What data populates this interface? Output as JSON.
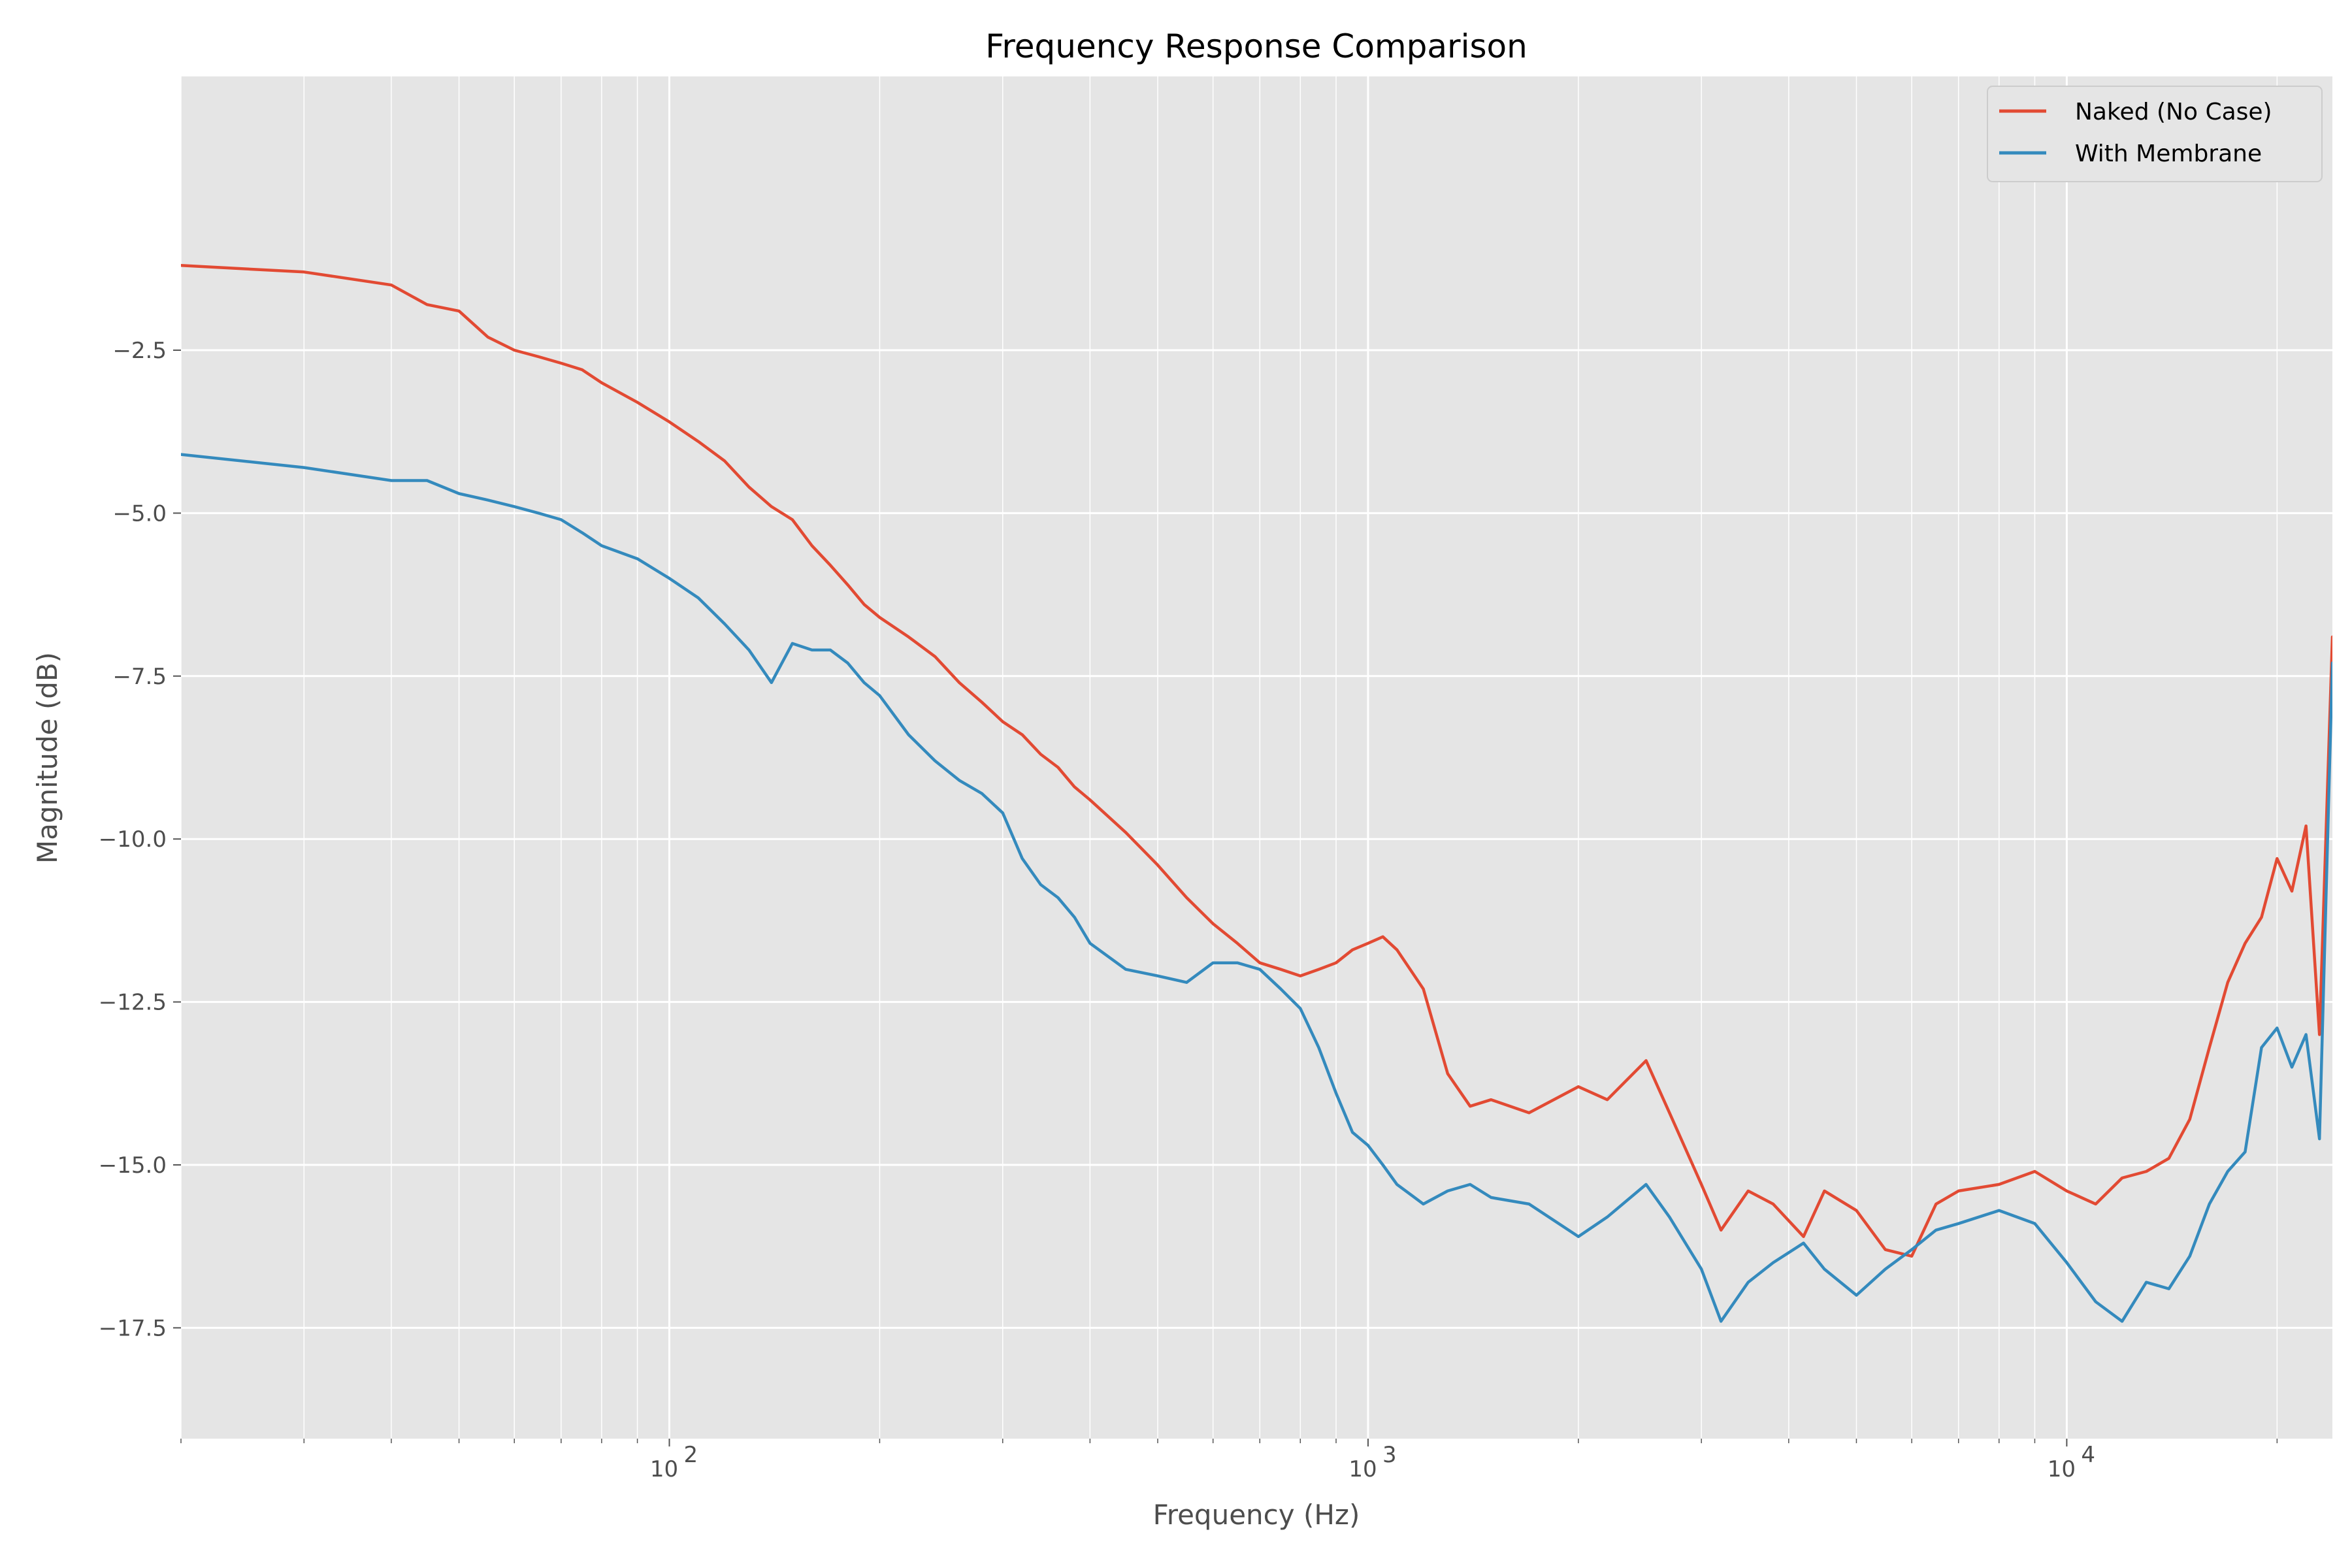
{
  "chart_data": {
    "type": "line",
    "title": "Frequency Response Comparison",
    "xlabel": "Frequency (Hz)",
    "ylabel": "Magnitude (dB)",
    "xscale": "log",
    "xlim": [
      20,
      24000
    ],
    "ylim": [
      -19.2,
      1.7
    ],
    "x_ticks": [
      {
        "value": 100,
        "mantissa": "10",
        "exponent": "2"
      },
      {
        "value": 1000,
        "mantissa": "10",
        "exponent": "3"
      },
      {
        "value": 10000,
        "mantissa": "10",
        "exponent": "4"
      }
    ],
    "y_ticks": [
      {
        "value": -2.5,
        "label": "−2.5"
      },
      {
        "value": -5.0,
        "label": "−5.0"
      },
      {
        "value": -7.5,
        "label": "−7.5"
      },
      {
        "value": -10.0,
        "label": "−10.0"
      },
      {
        "value": -12.5,
        "label": "−12.5"
      },
      {
        "value": -15.0,
        "label": "−15.0"
      },
      {
        "value": -17.5,
        "label": "−17.5"
      }
    ],
    "grid": true,
    "legend_position": "top-right",
    "background": "#e5e5e5",
    "series": [
      {
        "name": "Naked (No Case)",
        "color": "#e24a33",
        "x": [
          20,
          30,
          40,
          45,
          50,
          55,
          60,
          65,
          70,
          75,
          80,
          90,
          100,
          110,
          120,
          130,
          140,
          150,
          160,
          170,
          180,
          190,
          200,
          220,
          240,
          260,
          280,
          300,
          320,
          340,
          360,
          380,
          400,
          450,
          500,
          550,
          600,
          650,
          700,
          750,
          800,
          850,
          900,
          950,
          1000,
          1050,
          1100,
          1200,
          1300,
          1400,
          1500,
          1700,
          2000,
          2200,
          2500,
          2700,
          3000,
          3200,
          3500,
          3800,
          4200,
          4500,
          5000,
          5500,
          6000,
          6500,
          7000,
          8000,
          9000,
          10000,
          11000,
          12000,
          13000,
          14000,
          15000,
          16000,
          17000,
          18000,
          19000,
          20000,
          21000,
          22000,
          23000,
          24000
        ],
        "y": [
          -1.2,
          -1.3,
          -1.5,
          -1.8,
          -1.9,
          -2.3,
          -2.5,
          -2.6,
          -2.7,
          -2.8,
          -3.0,
          -3.3,
          -3.6,
          -3.9,
          -4.2,
          -4.6,
          -4.9,
          -5.1,
          -5.5,
          -5.8,
          -6.1,
          -6.4,
          -6.6,
          -6.9,
          -7.2,
          -7.6,
          -7.9,
          -8.2,
          -8.4,
          -8.7,
          -8.9,
          -9.2,
          -9.4,
          -9.9,
          -10.4,
          -10.9,
          -11.3,
          -11.6,
          -11.9,
          -12.0,
          -12.1,
          -12.0,
          -11.9,
          -11.7,
          -11.6,
          -11.5,
          -11.7,
          -12.3,
          -13.6,
          -14.1,
          -14.0,
          -14.2,
          -13.8,
          -14.0,
          -13.4,
          -14.2,
          -15.3,
          -16.0,
          -15.4,
          -15.6,
          -16.1,
          -15.4,
          -15.7,
          -16.3,
          -16.4,
          -15.6,
          -15.4,
          -15.3,
          -15.1,
          -15.4,
          -15.6,
          -15.2,
          -15.1,
          -14.9,
          -14.3,
          -13.2,
          -12.2,
          -11.6,
          -11.2,
          -10.3,
          -10.8,
          -9.8,
          -13.0,
          -6.9
        ]
      },
      {
        "name": "With Membrane",
        "color": "#348abd",
        "x": [
          20,
          30,
          40,
          45,
          50,
          55,
          60,
          65,
          70,
          75,
          80,
          90,
          100,
          110,
          120,
          130,
          140,
          150,
          160,
          170,
          180,
          190,
          200,
          220,
          240,
          260,
          280,
          300,
          320,
          340,
          360,
          380,
          400,
          450,
          500,
          550,
          600,
          650,
          700,
          750,
          800,
          850,
          900,
          950,
          1000,
          1050,
          1100,
          1200,
          1300,
          1400,
          1500,
          1700,
          2000,
          2200,
          2500,
          2700,
          3000,
          3200,
          3500,
          3800,
          4200,
          4500,
          5000,
          5500,
          6000,
          6500,
          7000,
          8000,
          9000,
          10000,
          11000,
          12000,
          13000,
          14000,
          15000,
          16000,
          17000,
          18000,
          19000,
          20000,
          21000,
          22000,
          23000,
          24000
        ],
        "y": [
          -4.1,
          -4.3,
          -4.5,
          -4.5,
          -4.7,
          -4.8,
          -4.9,
          -5.0,
          -5.1,
          -5.3,
          -5.5,
          -5.7,
          -6.0,
          -6.3,
          -6.7,
          -7.1,
          -7.6,
          -7.0,
          -7.1,
          -7.1,
          -7.3,
          -7.6,
          -7.8,
          -8.4,
          -8.8,
          -9.1,
          -9.3,
          -9.6,
          -10.3,
          -10.7,
          -10.9,
          -11.2,
          -11.6,
          -12.0,
          -12.1,
          -12.2,
          -11.9,
          -11.9,
          -12.0,
          -12.3,
          -12.6,
          -13.2,
          -13.9,
          -14.5,
          -14.7,
          -15.0,
          -15.3,
          -15.6,
          -15.4,
          -15.3,
          -15.5,
          -15.6,
          -16.1,
          -15.8,
          -15.3,
          -15.8,
          -16.6,
          -17.4,
          -16.8,
          -16.5,
          -16.2,
          -16.6,
          -17.0,
          -16.6,
          -16.3,
          -16.0,
          -15.9,
          -15.7,
          -15.9,
          -16.5,
          -17.1,
          -17.4,
          -16.8,
          -16.9,
          -16.4,
          -15.6,
          -15.1,
          -14.8,
          -13.2,
          -12.9,
          -13.5,
          -13.0,
          -14.6,
          -7.3
        ]
      }
    ]
  }
}
